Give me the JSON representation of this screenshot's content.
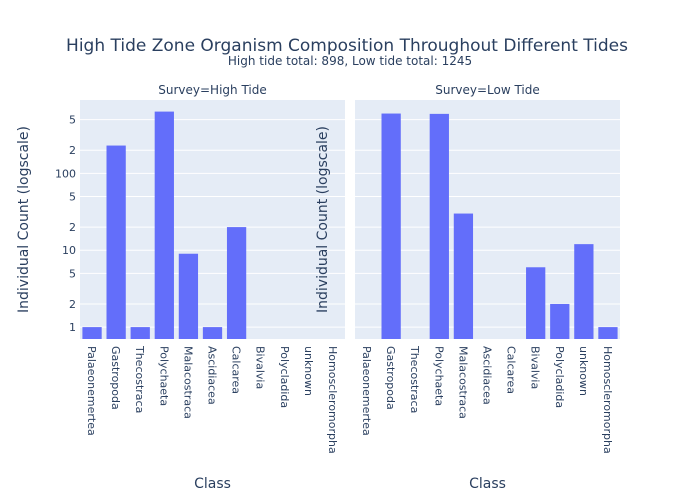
{
  "title": "High Tide Zone Organism Composition Throughout Different Tides",
  "subtitle": "High tide total: 898, Low tide total: 1245",
  "chart_data": [
    {
      "type": "bar",
      "title": "Survey=High Tide",
      "x_label": "Class",
      "y_label": "Individual Count (logscale)",
      "categories": [
        "Palaeonemertea",
        "Gastropoda",
        "Thecostraca",
        "Polychaeta",
        "Malacostraca",
        "Ascidiacea",
        "Calcarea",
        "Bivalvia",
        "Polycladida",
        "unknown",
        "Homoscleromorpha"
      ],
      "values": [
        1,
        230,
        1,
        636,
        9,
        1,
        20,
        null,
        null,
        null,
        null
      ],
      "color": "#636efa",
      "log_y": true,
      "grid": true,
      "ylim": [
        0.7,
        900
      ],
      "yticks": [
        1,
        2,
        5,
        10,
        {
          "value": 20,
          "label": "2"
        },
        {
          "value": 50,
          "label": "5"
        },
        100,
        {
          "value": 200,
          "label": "2"
        },
        {
          "value": 500,
          "label": "5"
        }
      ]
    },
    {
      "type": "bar",
      "title": "Survey=Low Tide",
      "x_label": "Class",
      "y_label": "Individual Count (logscale)",
      "categories": [
        "Palaeonemertea",
        "Gastropoda",
        "Thecostraca",
        "Polychaeta",
        "Malacostraca",
        "Ascidiacea",
        "Calcarea",
        "Bivalvia",
        "Polycladida",
        "unknown",
        "Homoscleromorpha"
      ],
      "values": [
        null,
        600,
        null,
        594,
        30,
        null,
        null,
        6,
        2,
        12,
        1
      ],
      "color": "#636efa",
      "log_y": true,
      "grid": true,
      "ylim": [
        0.7,
        900
      ],
      "yticks": [
        1,
        2,
        5,
        10,
        20,
        50,
        100,
        200,
        500
      ]
    }
  ]
}
